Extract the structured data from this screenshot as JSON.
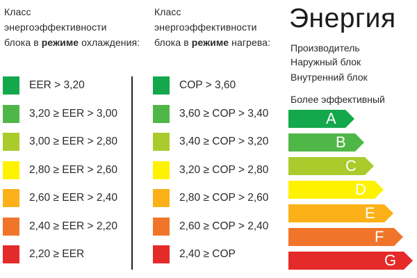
{
  "cooling": {
    "header": {
      "line1": "Класс",
      "line2": "энергоэффективности",
      "line3_prefix": "блока в ",
      "line3_bold": "режиме",
      "line3_suffix": " охлаждения:"
    },
    "rows": [
      {
        "label": "EER > 3,20",
        "color": "#12a84b"
      },
      {
        "label": "3,20 ≥ EER > 3,00",
        "color": "#4fb747"
      },
      {
        "label": "3,00 ≥ EER > 2,80",
        "color": "#aacb2c"
      },
      {
        "label": "2,80 ≥ EER > 2,60",
        "color": "#fff200"
      },
      {
        "label": "2,60 ≥ EER > 2,40",
        "color": "#fbb117"
      },
      {
        "label": "2,40 ≥ EER > 2,20",
        "color": "#f0752a"
      },
      {
        "label": "2,20 ≥ EER",
        "color": "#e52a2a"
      }
    ]
  },
  "heating": {
    "header": {
      "line1": "Класс",
      "line2": "энергоэффективности",
      "line3_prefix": "блока в ",
      "line3_bold": "режиме",
      "line3_suffix": " нагрева:"
    },
    "rows": [
      {
        "label": "COP > 3,60",
        "color": "#12a84b"
      },
      {
        "label": "3,60 ≥ COP > 3,40",
        "color": "#4fb747"
      },
      {
        "label": "3,40 ≥ COP > 3,20",
        "color": "#aacb2c"
      },
      {
        "label": "3,20 ≥ COP > 2,80",
        "color": "#fff200"
      },
      {
        "label": "2,80 ≥ COP > 2,60",
        "color": "#fbb117"
      },
      {
        "label": "2,60 ≥ COP > 2,40",
        "color": "#f0752a"
      },
      {
        "label": "2,40 ≥ COP",
        "color": "#e52a2a"
      }
    ]
  },
  "energy_label": {
    "title": "Энергия",
    "manufacturer": "Производитель",
    "outdoor_unit": "Наружный блок",
    "indoor_unit": "Внутренний блок",
    "more_efficient": "Более эффективный",
    "classes": [
      {
        "letter": "A",
        "color": "#12a84b"
      },
      {
        "letter": "B",
        "color": "#4fb747"
      },
      {
        "letter": "C",
        "color": "#aacb2c"
      },
      {
        "letter": "D",
        "color": "#fff200"
      },
      {
        "letter": "E",
        "color": "#fbb117"
      },
      {
        "letter": "F",
        "color": "#f0752a"
      },
      {
        "letter": "G",
        "color": "#e52a2a"
      }
    ]
  }
}
